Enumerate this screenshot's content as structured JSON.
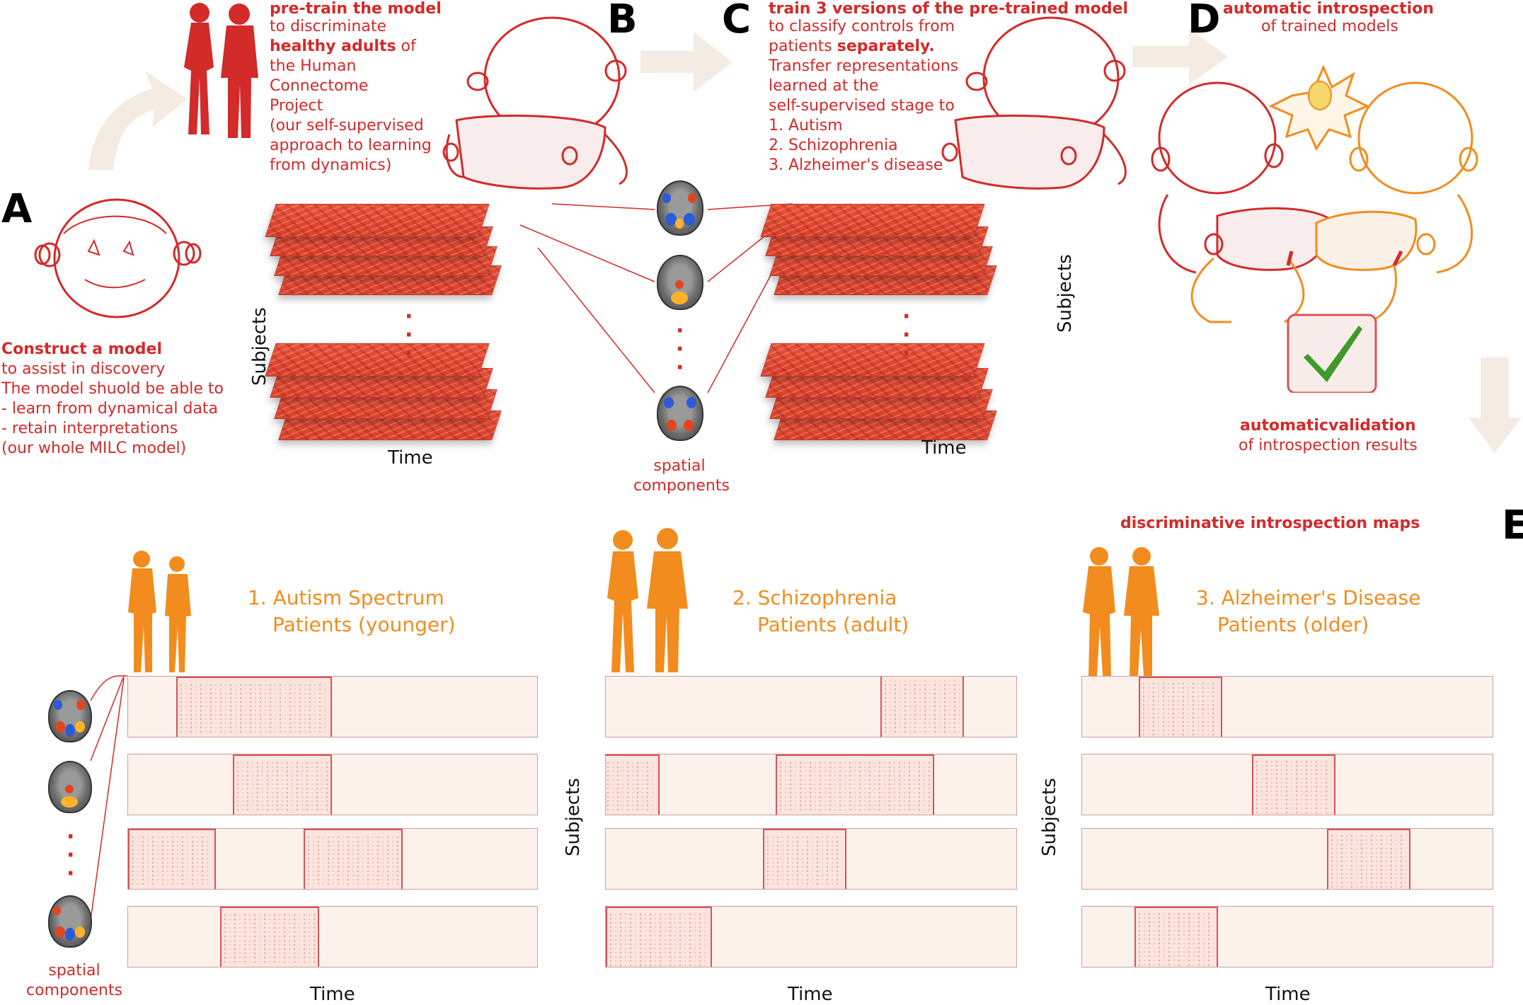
{
  "colors": {
    "accent_red": "#d32a2a",
    "accent_orange": "#f28c1e",
    "arrow": "#f4ece2",
    "check_green": "#3f9a2a"
  },
  "panels": {
    "A": {
      "letter": "A",
      "title": "Construct a model",
      "lines": [
        "to assist in discovery",
        "The model shuold be able to",
        "- learn from dynamical data",
        "- retain interpretations",
        "(our whole MILC model)"
      ]
    },
    "B": {
      "letter": "B",
      "title": "pre-train the model",
      "line1": "to discriminate",
      "bold_phrase": "healthy adults",
      "bold_suffix": " of",
      "lines": [
        "the Human",
        "Connectome",
        "Project",
        "(our self-supervised",
        "approach to learning",
        "from dynamics)"
      ]
    },
    "C": {
      "letter": "C",
      "title": "train 3 versions of the pre-trained model",
      "line1": "to classify controls from",
      "line2_prefix": "patients ",
      "line2_bold": "separately.",
      "lines": [
        "Transfer representations",
        "learned at the",
        "self-supervised stage to",
        "1. Autism",
        "2. Schizophrenia",
        "3. Alzheimer's disease"
      ]
    },
    "D": {
      "letter": "D",
      "title": "automatic introspection",
      "subtitle": "of trained models",
      "validation_title": "automaticvalidation",
      "validation_subtitle": "of introspection results"
    },
    "E": {
      "letter": "E",
      "title": "discriminative introspection maps"
    }
  },
  "labels": {
    "subjects": "Subjects",
    "time": "Time",
    "spatial_line1": "spatial",
    "spatial_line2": "components"
  },
  "groups": [
    {
      "line1": "1. Autism Spectrum",
      "line2": "Patients (younger)"
    },
    {
      "line1": "2. Schizophrenia",
      "line2": "Patients (adult)"
    },
    {
      "line1": "3. Alzheimer's Disease",
      "line2": "Patients (older)"
    }
  ]
}
